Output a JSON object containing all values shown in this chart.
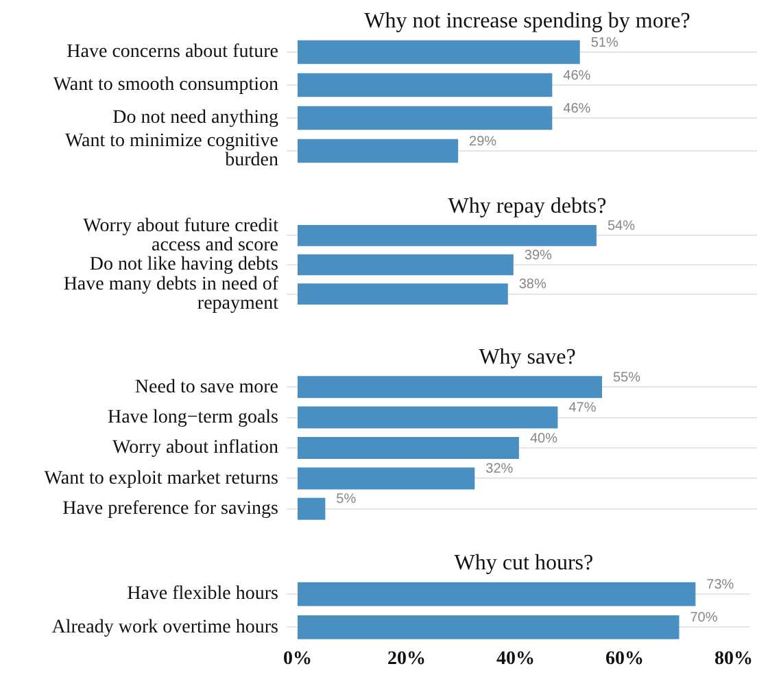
{
  "chart_data": [
    {
      "type": "bar",
      "orientation": "horizontal",
      "title": "Why not increase spending by more?",
      "categories": [
        "Have concerns about future",
        "Want to smooth consumption",
        "Do not need anything",
        "Want to minimize cognitive burden"
      ],
      "values": [
        51,
        46,
        46,
        29
      ],
      "value_labels": [
        "51%",
        "46%",
        "46%",
        "29%"
      ],
      "color": "#4a8fc2",
      "xlim": [
        0,
        83
      ],
      "grid": "y",
      "tick_labels": "y"
    },
    {
      "type": "bar",
      "orientation": "horizontal",
      "title": "Why repay debts?",
      "categories": [
        "Worry about future credit access and score",
        "Do not like having debts",
        "Have many debts in need of repayment"
      ],
      "values": [
        54,
        39,
        38
      ],
      "value_labels": [
        "54%",
        "39%",
        "38%"
      ],
      "color": "#4a8fc2",
      "xlim": [
        0,
        83
      ],
      "grid": "y",
      "tick_labels": "y"
    },
    {
      "type": "bar",
      "orientation": "horizontal",
      "title": "Why save?",
      "categories": [
        "Need to save more",
        "Have long−term goals",
        "Worry about inflation",
        "Want to exploit market returns",
        "Have preference for savings"
      ],
      "values": [
        55,
        47,
        40,
        32,
        5
      ],
      "value_labels": [
        "55%",
        "47%",
        "40%",
        "32%",
        "5%"
      ],
      "color": "#4a8fc2",
      "xlim": [
        0,
        83
      ],
      "grid": "y",
      "tick_labels": "y"
    },
    {
      "type": "bar",
      "orientation": "horizontal",
      "title": "Why cut hours?",
      "categories": [
        "Have flexible hours",
        "Already work overtime hours"
      ],
      "values": [
        73,
        70
      ],
      "value_labels": [
        "73%",
        "70%"
      ],
      "color": "#4a8fc2",
      "xlim": [
        0,
        83
      ],
      "xticks": [
        {
          "value": 0,
          "label": "0%"
        },
        {
          "value": 20,
          "label": "20%"
        },
        {
          "value": 40,
          "label": "40%"
        },
        {
          "value": 60,
          "label": "60%"
        },
        {
          "value": 80,
          "label": "80%"
        }
      ],
      "grid": "y"
    }
  ]
}
